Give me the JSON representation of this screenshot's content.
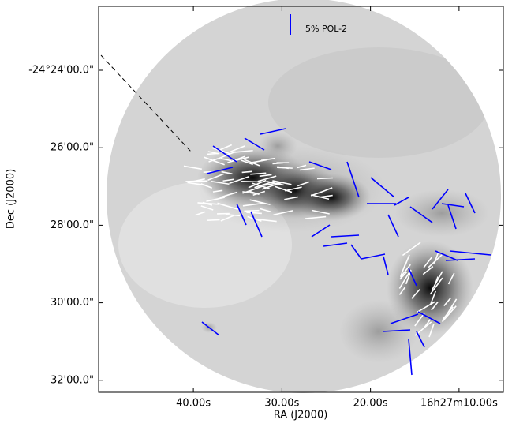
{
  "chart_data": {
    "type": "image",
    "xlabel": "RA (J2000)",
    "ylabel": "Dec (J2000)",
    "annotation": "5% POL-2",
    "xlim": [
      50.7,
      5.0
    ],
    "xticks": [
      {
        "value": 40,
        "label": "40.00s"
      },
      {
        "value": 30,
        "label": "30.00s"
      },
      {
        "value": 20,
        "label": "20.00s"
      },
      {
        "value": 10,
        "label": "16h27m10.00s"
      }
    ],
    "ylim": [
      32.31,
      22.35
    ],
    "yticks": [
      {
        "value": 24,
        "label": "-24°24'00.0\""
      },
      {
        "value": 26,
        "label": "26'00.0\""
      },
      {
        "value": 28,
        "label": "28'00.0\""
      },
      {
        "value": 30,
        "label": "30'00.0\""
      },
      {
        "value": 32,
        "label": "32'00.0\""
      }
    ]
  }
}
